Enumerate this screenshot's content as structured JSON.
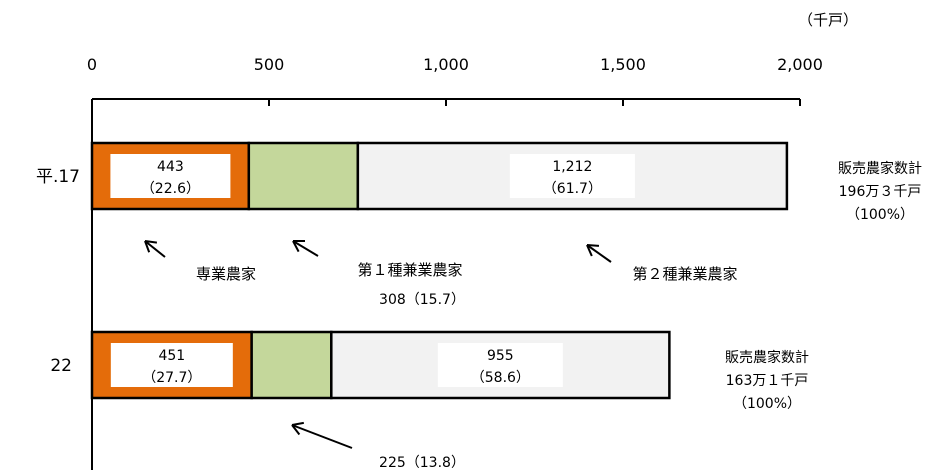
{
  "chart_data": {
    "type": "bar",
    "orientation": "horizontal",
    "stacked": true,
    "unit": "（千戸）",
    "xlim": [
      0,
      2000
    ],
    "x_ticks": [
      {
        "value": 0,
        "label": "0"
      },
      {
        "value": 500,
        "label": "500"
      },
      {
        "value": 1000,
        "label": "1,000"
      },
      {
        "value": 1500,
        "label": "1,500"
      },
      {
        "value": 2000,
        "label": "2,000"
      }
    ],
    "categories": [
      "平.17",
      "22"
    ],
    "series": [
      {
        "name": "専業農家",
        "color": "#e46c0a",
        "values": [
          443,
          451
        ],
        "labels": [
          [
            "443",
            "（22.6）"
          ],
          [
            "451",
            "（27.7）"
          ]
        ]
      },
      {
        "name": "第１種兼業農家",
        "color": "#c4d79b",
        "values": [
          308,
          225
        ],
        "labels": [
          [
            "308（15.7）"
          ],
          [
            "225（13.8）"
          ]
        ]
      },
      {
        "name": "第２種兼業農家",
        "color": "#f2f2f2",
        "values": [
          1212,
          955
        ],
        "labels": [
          [
            "1,212",
            "（61.7）"
          ],
          [
            "955",
            "（58.6）"
          ]
        ]
      }
    ],
    "totals": [
      {
        "lines": [
          "販売農家数計",
          "196万３千戸",
          "（100%）"
        ]
      },
      {
        "lines": [
          "販売農家数計",
          "163万１千戸",
          "（100%）"
        ]
      }
    ],
    "grid": false,
    "legend": "callout-labels"
  }
}
